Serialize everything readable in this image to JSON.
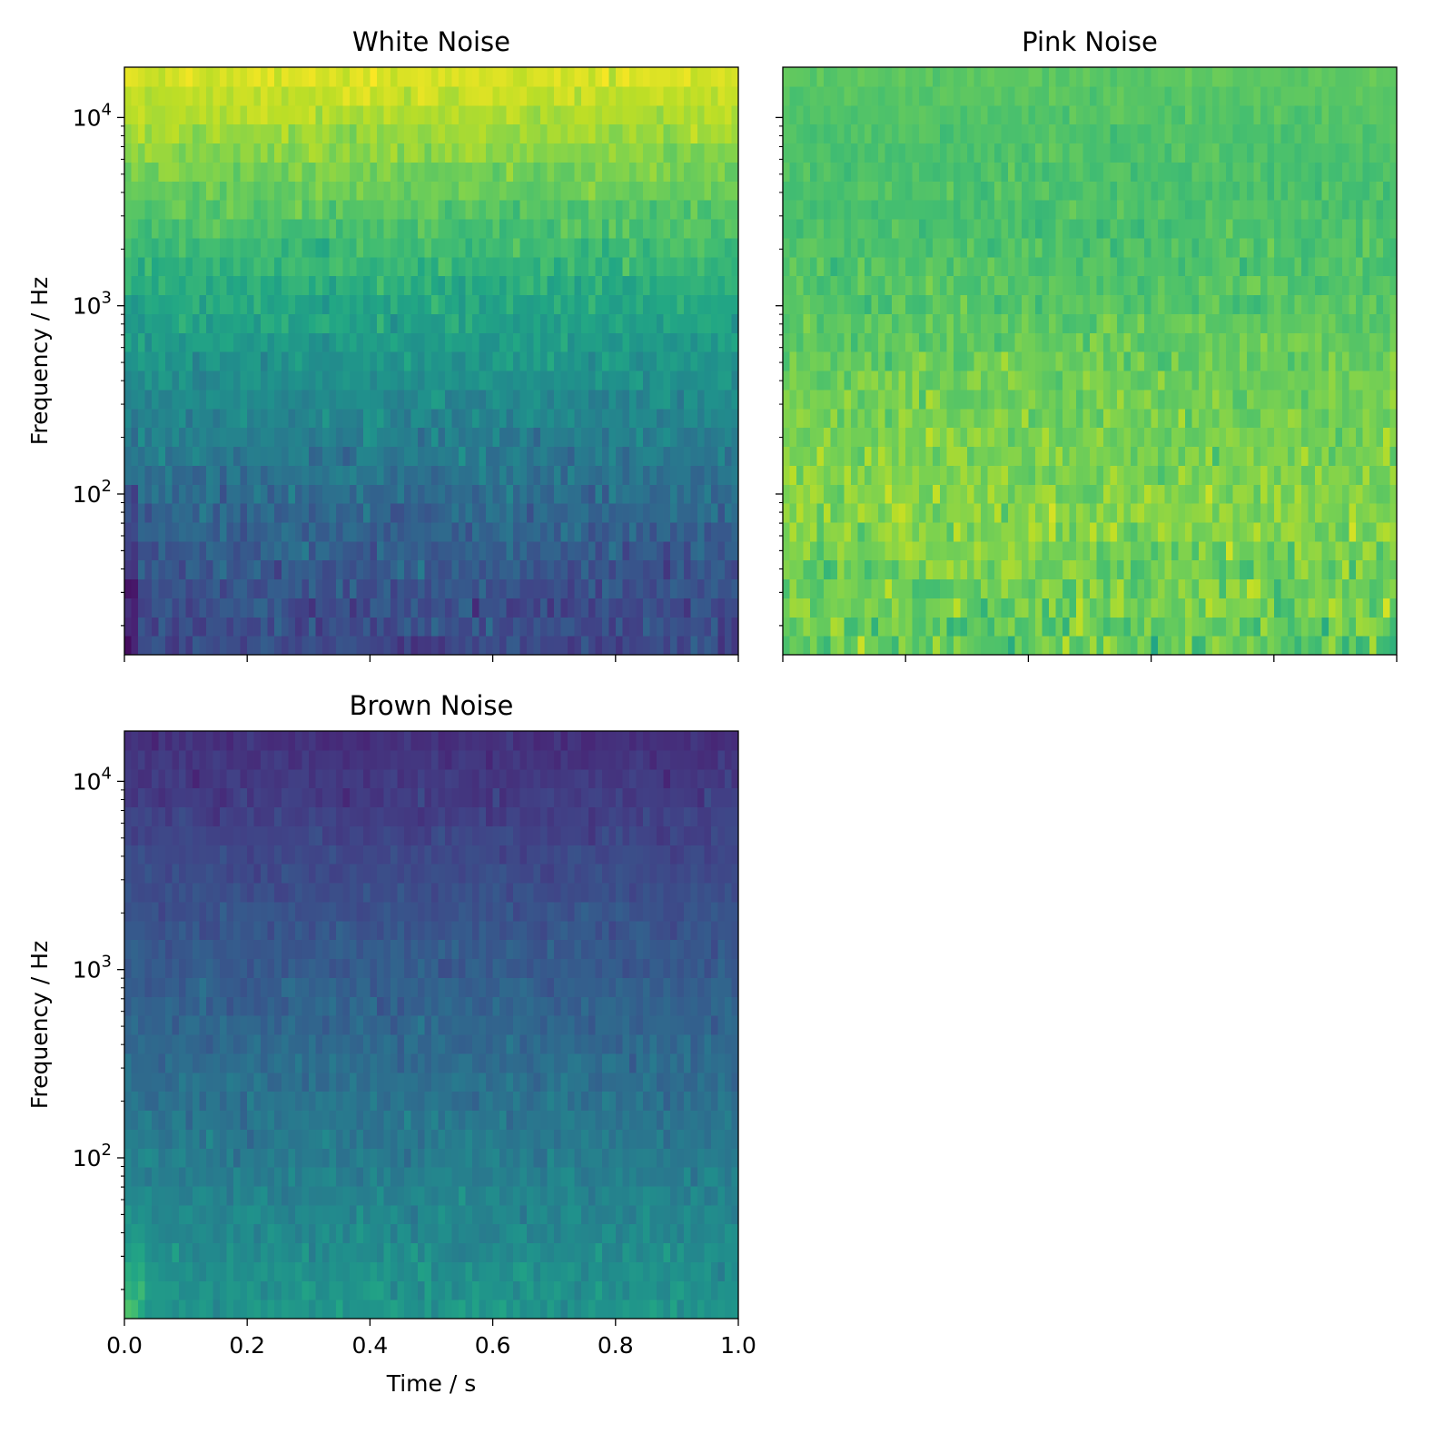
{
  "chart_data": [
    {
      "type": "heatmap",
      "title": "White Noise",
      "xlabel": "",
      "ylabel": "Frequency / Hz",
      "xlim": [
        0.0,
        1.0
      ],
      "ylim": [
        14,
        18500
      ],
      "yscale": "log",
      "x_tick_values": [
        0.0,
        0.2,
        0.4,
        0.6,
        0.8,
        1.0
      ],
      "x_tick_labels": [
        "",
        "",
        "",
        "",
        "",
        ""
      ],
      "y_tick_values": [
        100,
        1000,
        10000
      ],
      "y_tick_labels": [
        "10",
        "10",
        "10"
      ],
      "y_tick_exponents": [
        "2",
        "3",
        "4"
      ],
      "colormap": "viridis",
      "grid": false,
      "time_bins": 90,
      "frequency_bins": 31,
      "trend": "intensity increases with frequency"
    },
    {
      "type": "heatmap",
      "title": "Pink Noise",
      "xlabel": "",
      "ylabel": "",
      "xlim": [
        0.0,
        1.0
      ],
      "ylim": [
        14,
        18500
      ],
      "yscale": "log",
      "x_tick_values": [
        0.0,
        0.2,
        0.4,
        0.6,
        0.8,
        1.0
      ],
      "x_tick_labels": [
        "",
        "",
        "",
        "",
        "",
        ""
      ],
      "y_tick_values": [
        100,
        1000,
        10000
      ],
      "y_tick_labels": [
        "",
        "",
        ""
      ],
      "y_tick_exponents": [
        "",
        "",
        ""
      ],
      "colormap": "viridis",
      "grid": false,
      "time_bins": 90,
      "frequency_bins": 31,
      "trend": "roughly flat intensity across frequency"
    },
    {
      "type": "heatmap",
      "title": "Brown Noise",
      "xlabel": "Time / s",
      "ylabel": "Frequency / Hz",
      "xlim": [
        0.0,
        1.0
      ],
      "ylim": [
        14,
        18500
      ],
      "yscale": "log",
      "x_tick_values": [
        0.0,
        0.2,
        0.4,
        0.6,
        0.8,
        1.0
      ],
      "x_tick_labels": [
        "0.0",
        "0.2",
        "0.4",
        "0.6",
        "0.8",
        "1.0"
      ],
      "y_tick_values": [
        100,
        1000,
        10000
      ],
      "y_tick_labels": [
        "10",
        "10",
        "10"
      ],
      "y_tick_exponents": [
        "2",
        "3",
        "4"
      ],
      "colormap": "viridis",
      "grid": false,
      "time_bins": 90,
      "frequency_bins": 31,
      "trend": "intensity decreases with frequency"
    }
  ]
}
